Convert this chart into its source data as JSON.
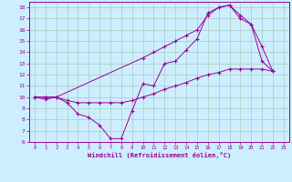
{
  "xlabel": "Windchill (Refroidissement éolien,°C)",
  "bg_color": "#cceeff",
  "grid_color": "#aaccbb",
  "line_color": "#990099",
  "xlim": [
    -0.5,
    23.5
  ],
  "ylim": [
    6,
    18.5
  ],
  "xticks": [
    0,
    1,
    2,
    3,
    4,
    5,
    6,
    7,
    8,
    9,
    10,
    11,
    12,
    13,
    14,
    15,
    16,
    17,
    18,
    19,
    20,
    21,
    22,
    23
  ],
  "yticks": [
    6,
    7,
    8,
    9,
    10,
    11,
    12,
    13,
    14,
    15,
    16,
    17,
    18
  ],
  "line1_x": [
    0,
    1,
    2,
    3,
    4,
    5,
    6,
    7,
    8,
    9,
    10,
    11,
    12,
    13,
    14,
    15,
    16,
    17,
    18,
    19,
    20,
    21,
    22
  ],
  "line1_y": [
    10,
    9.8,
    10.0,
    9.5,
    8.5,
    8.2,
    7.5,
    6.3,
    6.3,
    8.8,
    11.2,
    11.0,
    13.0,
    13.2,
    14.2,
    15.2,
    17.5,
    18.0,
    18.2,
    17.0,
    16.5,
    13.2,
    12.3
  ],
  "line2_x": [
    0,
    1,
    2,
    3,
    4,
    5,
    6,
    7,
    8,
    9,
    10,
    11,
    12,
    13,
    14,
    15,
    16,
    17,
    18,
    19,
    20,
    21,
    22
  ],
  "line2_y": [
    10,
    10,
    10,
    9.7,
    9.5,
    9.5,
    9.5,
    9.5,
    9.5,
    9.7,
    10.0,
    10.3,
    10.7,
    11.0,
    11.3,
    11.7,
    12.0,
    12.2,
    12.5,
    12.5,
    12.5,
    12.5,
    12.3
  ],
  "line3_x": [
    0,
    1,
    2,
    10,
    11,
    12,
    13,
    14,
    15,
    16,
    17,
    18,
    19,
    20,
    21,
    22
  ],
  "line3_y": [
    10,
    10,
    10,
    13.5,
    14.0,
    14.5,
    15.0,
    15.5,
    16.0,
    17.3,
    18.0,
    18.2,
    17.3,
    16.5,
    14.5,
    12.3
  ]
}
